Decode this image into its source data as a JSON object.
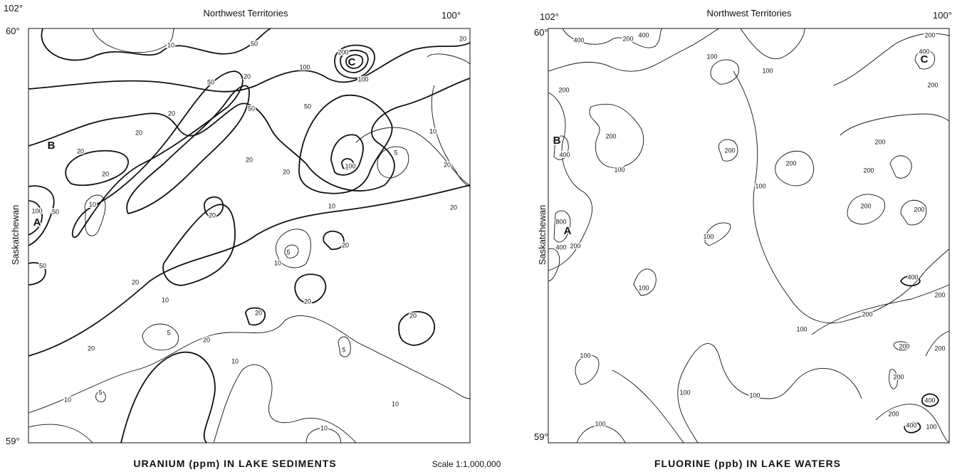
{
  "maps": [
    {
      "title": "URANIUM (ppm) IN LAKE SEDIMENTS",
      "north": "Northwest Territories",
      "west": "Saskatchewan",
      "lon_left": "102°",
      "lon_right": "100°",
      "lat_top": "60°",
      "lat_bottom": "59°",
      "points": [
        "A",
        "B",
        "C"
      ],
      "contour_labels": [
        10,
        50,
        100,
        200,
        100,
        20,
        50,
        20,
        50,
        10,
        20,
        20,
        20,
        20,
        50,
        20,
        20,
        20,
        100,
        5,
        20,
        10,
        100,
        50,
        20,
        10,
        20,
        5,
        10,
        50,
        20,
        10,
        20,
        20,
        20,
        20,
        5,
        20,
        10,
        5,
        10,
        5,
        10,
        10
      ]
    },
    {
      "title": "FLUORINE (ppb) IN LAKE WATERS",
      "north": "Northwest Territories",
      "west": "Saskatchewan",
      "lon_left": "102°",
      "lon_right": "100°",
      "lat_top": "60°",
      "lat_bottom": "59°",
      "points": [
        "A",
        "B",
        "C"
      ],
      "contour_labels": [
        400,
        200,
        400,
        100,
        100,
        200,
        400,
        200,
        200,
        200,
        400,
        200,
        200,
        100,
        200,
        200,
        100,
        200,
        200,
        800,
        400,
        200,
        100,
        100,
        400,
        200,
        200,
        100,
        200,
        200,
        100,
        200,
        100,
        100,
        400,
        200,
        400,
        100,
        100
      ]
    }
  ],
  "scale": "Scale 1:1,000,000"
}
